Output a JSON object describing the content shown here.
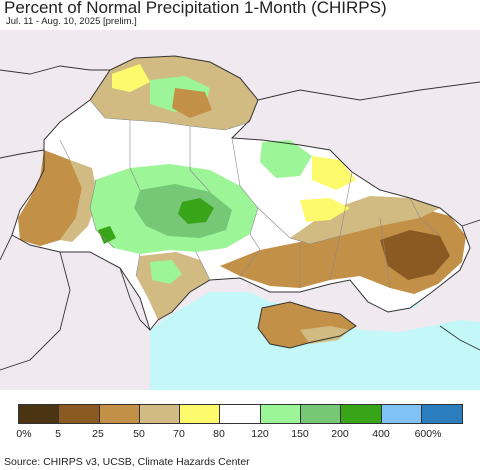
{
  "title": "Percent of Normal Precipitation 1-Month (CHIRPS)",
  "subtitle": "Jul. 11 - Aug. 10, 2025 [prelim.]",
  "source": "Source: CHIRPS v3, UCSB, Climate Hazards Center",
  "legend": {
    "colors": [
      "#4a3412",
      "#8b5a22",
      "#c39048",
      "#d2bb82",
      "#fdfb6c",
      "#ffffff",
      "#9cf596",
      "#76c876",
      "#38a418",
      "#7ec2f8",
      "#2a7ec0"
    ],
    "labels": [
      "0%",
      "5",
      "25",
      "50",
      "70",
      "80",
      "120",
      "150",
      "200",
      "400",
      "600%"
    ]
  },
  "colors": {
    "sea": "#c4f8f8",
    "outside": "#f0eaf0",
    "border": "#333333",
    "region_border": "#888888"
  }
}
